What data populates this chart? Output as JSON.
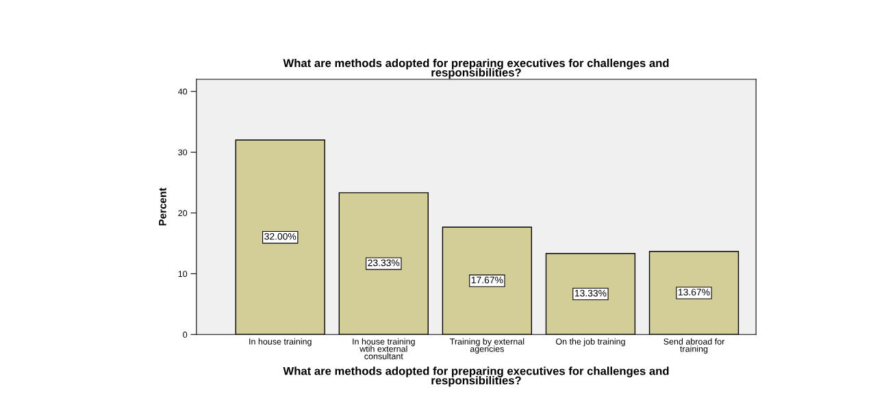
{
  "chart_data": {
    "type": "bar",
    "title": "What are methods adopted for preparing executives for challenges and\nresponsibilities?",
    "xlabel": "What are methods adopted for preparing executives for challenges and\nresponsibilities?",
    "ylabel": "Percent",
    "categories": [
      "In house training",
      "In house training\nwtih external\nconsultant",
      "Training by external\nagencies",
      "On the job training",
      "Send abroad for\ntraining"
    ],
    "values": [
      32.0,
      23.33,
      17.67,
      13.33,
      13.67
    ],
    "value_labels": [
      "32.00%",
      "23.33%",
      "17.67%",
      "13.33%",
      "13.67%"
    ],
    "color": "#d3ce97",
    "ylim": [
      0,
      42
    ],
    "yticks": [
      0,
      10,
      20,
      30,
      40
    ],
    "grid": false
  }
}
